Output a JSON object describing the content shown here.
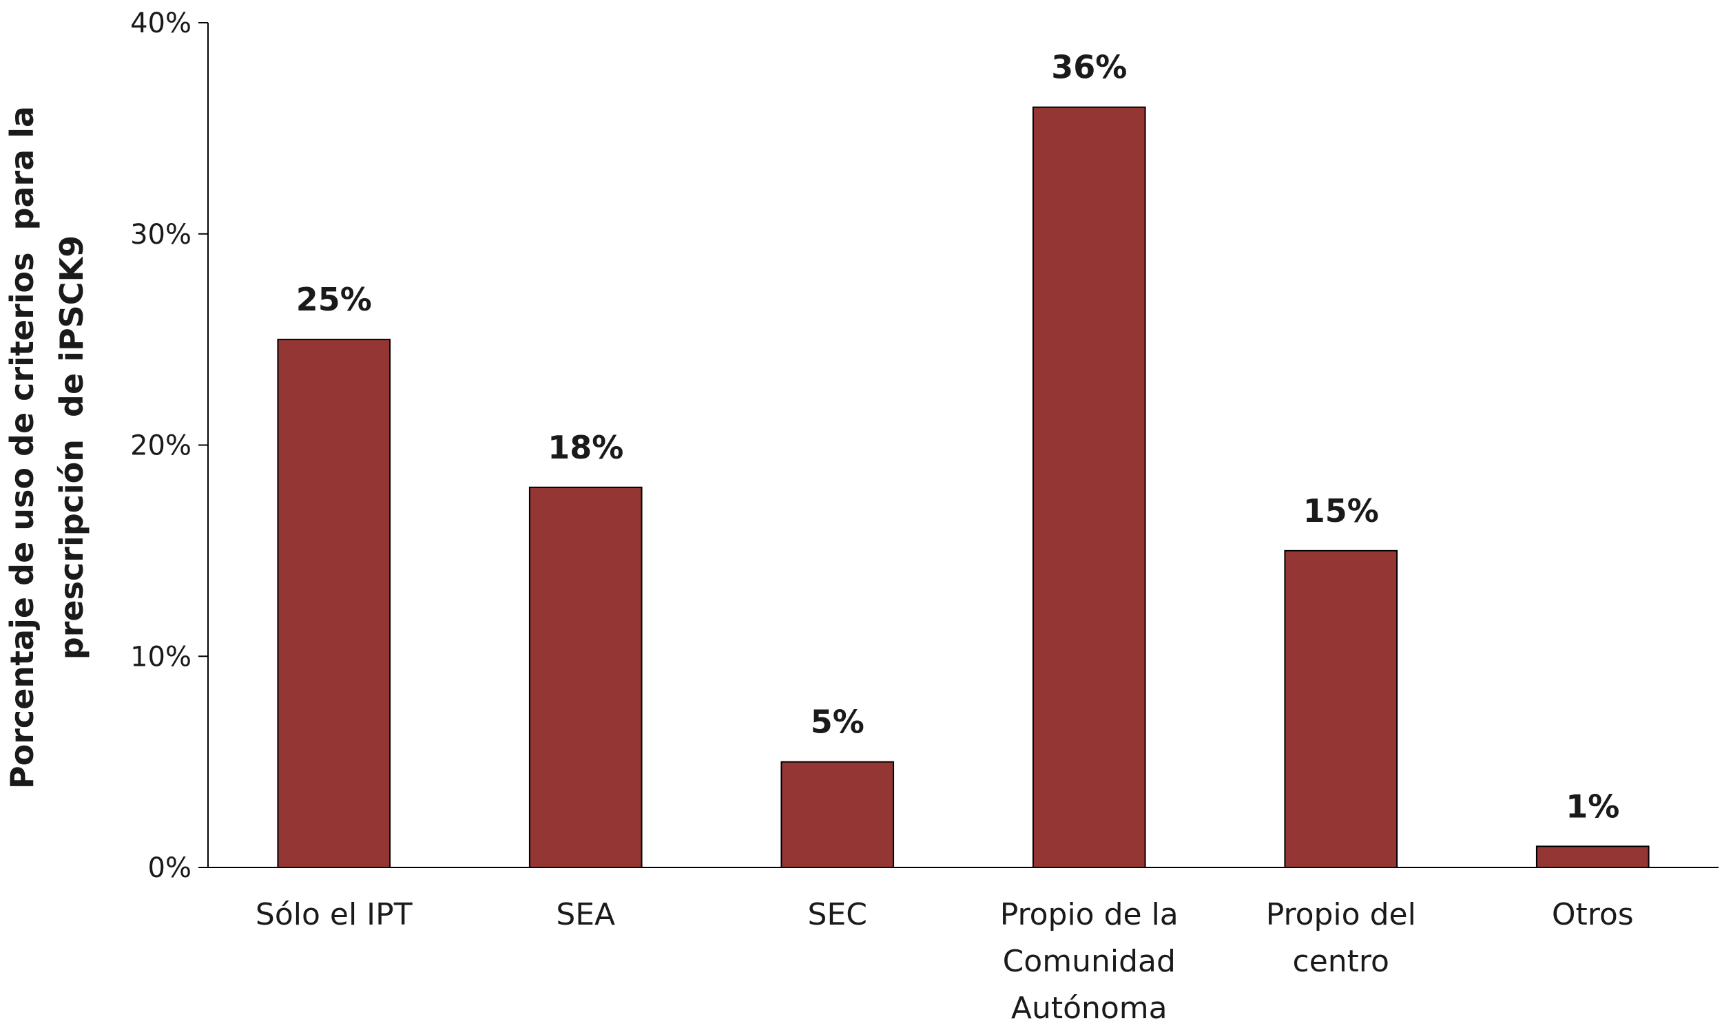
{
  "chart_data": {
    "type": "bar",
    "categories": [
      [
        "Sólo el IPT"
      ],
      [
        "SEA"
      ],
      [
        "SEC"
      ],
      [
        "Propio de la",
        "Comunidad",
        "Autónoma"
      ],
      [
        "Propio del",
        "centro"
      ],
      [
        "Otros"
      ]
    ],
    "values": [
      25,
      18,
      5,
      36,
      15,
      1
    ],
    "data_labels": [
      "25%",
      "18%",
      "5%",
      "36%",
      "15%",
      "1%"
    ],
    "ylabel": [
      "Porcentaje de uso de criterios  para la",
      "prescripción  de iPSCK9"
    ],
    "xlabel": "",
    "ylim": [
      0,
      40
    ],
    "yticks": [
      0,
      10,
      20,
      30,
      40
    ],
    "ytick_labels": [
      "0%",
      "10%",
      "20%",
      "30%",
      "40%"
    ],
    "grid": false,
    "legend": "none",
    "bar_color": "#943634",
    "bar_edge_color": "#000000"
  }
}
